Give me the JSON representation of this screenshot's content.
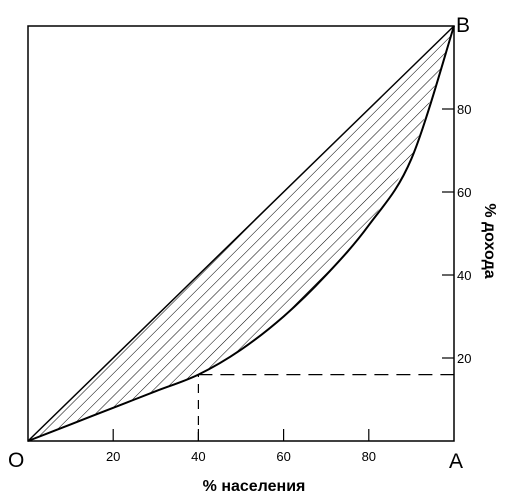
{
  "chart_data": {
    "type": "line",
    "xlabel": "% населения",
    "ylabel": "% дохода",
    "xlim": [
      0,
      100
    ],
    "ylim": [
      0,
      100
    ],
    "x_ticks": [
      20,
      40,
      60,
      80
    ],
    "y_ticks": [
      20,
      40,
      60,
      80
    ],
    "corner_labels": {
      "origin": "O",
      "bottom_right": "A",
      "top_right": "B"
    },
    "series": [
      {
        "x": [
          0,
          100
        ],
        "y": [
          0,
          100
        ]
      },
      {
        "x": [
          0,
          10,
          20,
          30,
          40,
          50,
          60,
          70,
          80,
          90,
          100
        ],
        "y": [
          0,
          4,
          8,
          12,
          16,
          22,
          30,
          40,
          52,
          68,
          100
        ]
      }
    ],
    "reference_point": {
      "x": 40,
      "y": 16
    },
    "shaded_region": "between_diagonal_and_lorenz_curve"
  }
}
